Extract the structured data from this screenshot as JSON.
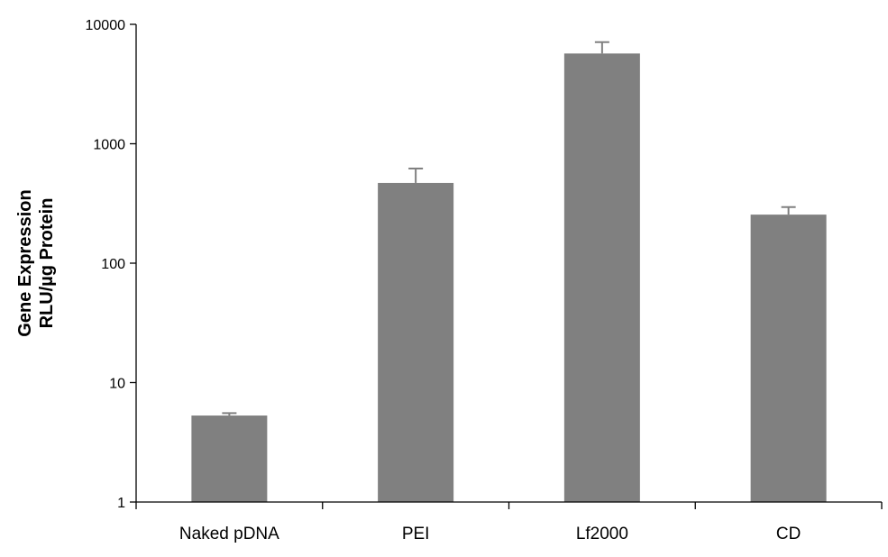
{
  "chart_data": {
    "type": "bar",
    "title": "",
    "xlabel": "",
    "ylabel_lines": [
      "Gene Expression",
      "RLU/µg Protein"
    ],
    "yscale": "log",
    "ylim": [
      1,
      10000
    ],
    "yticks": [
      1,
      10,
      100,
      1000,
      10000
    ],
    "ytick_labels": [
      "1",
      "10",
      "100",
      "1000",
      "10000"
    ],
    "grid": false,
    "legend": "none",
    "categories": [
      "Naked pDNA",
      "PEI",
      "Lf2000",
      "CD"
    ],
    "series": [
      {
        "values": [
          5.3,
          470,
          5700,
          255
        ],
        "error_upper": [
          0.25,
          150,
          1400,
          40
        ]
      }
    ],
    "colors": {
      "bar": "#808080",
      "error": "#808080",
      "axis": "#000000"
    }
  }
}
